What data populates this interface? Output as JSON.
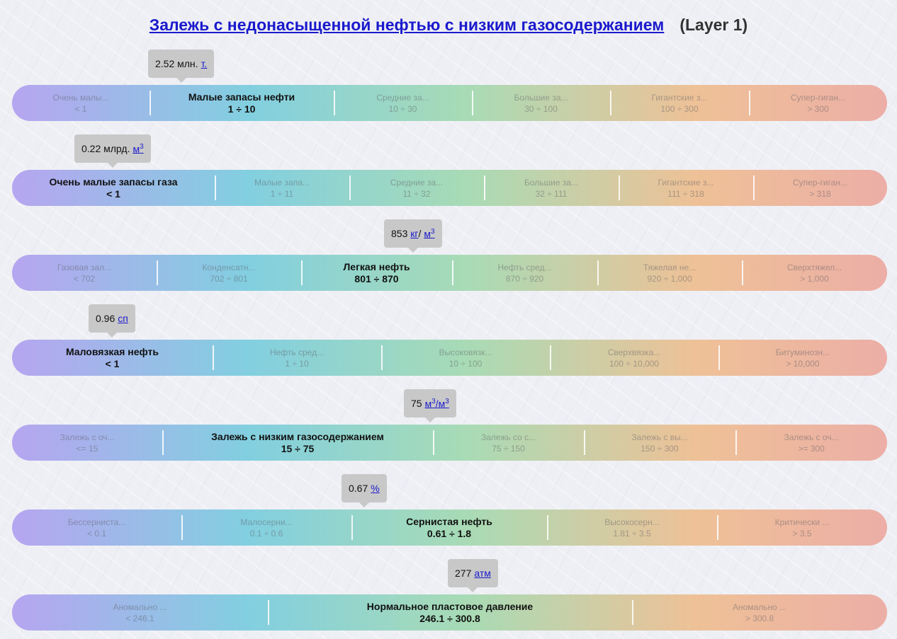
{
  "header": {
    "title": "Залежь с недонасыщенной нефтью с низким газосодержанием",
    "layer": "(Layer 1)"
  },
  "scales": [
    {
      "value": "2.52",
      "unit_prefix": "млн.",
      "unit_link": "т.",
      "segments": [
        {
          "name": "Очень малы...",
          "range": "< 1"
        },
        {
          "name": "Малые запасы нефти",
          "range": "1 ÷ 10"
        },
        {
          "name": "Средние за...",
          "range": "10 ÷ 30"
        },
        {
          "name": "Большие за...",
          "range": "30 ÷ 100"
        },
        {
          "name": "Гигантские з...",
          "range": "100 ÷ 300"
        },
        {
          "name": "Супер-гиган...",
          "range": "> 300"
        }
      ]
    },
    {
      "value": "0.22",
      "unit_prefix": "млрд.",
      "unit_link": "м",
      "segments": [
        {
          "name": "Очень малые запасы газа",
          "range": "< 1"
        },
        {
          "name": "Малые запа...",
          "range": "1 ÷ 11"
        },
        {
          "name": "Средние за...",
          "range": "11 ÷ 32"
        },
        {
          "name": "Большие за...",
          "range": "32 ÷ 111"
        },
        {
          "name": "Гигантские з...",
          "range": "111 ÷ 318"
        },
        {
          "name": "Супер-гиган...",
          "range": "> 318"
        }
      ]
    },
    {
      "value": "853",
      "unit_link": "кг",
      "unit_sep": "/",
      "unit_link2": "м",
      "segments": [
        {
          "name": "Газовая зал...",
          "range": "< 702"
        },
        {
          "name": "Конденсатн...",
          "range": "702 ÷ 801"
        },
        {
          "name": "Легкая нефть",
          "range": "801 ÷ 870"
        },
        {
          "name": "Нефть сред...",
          "range": "870 ÷ 920"
        },
        {
          "name": "Тяжелая не...",
          "range": "920 ÷ 1,000"
        },
        {
          "name": "Сверхтяжел...",
          "range": "> 1,000"
        }
      ]
    },
    {
      "value": "0.96",
      "unit_link": "сп",
      "segments": [
        {
          "name": "Маловязкая нефть",
          "range": "< 1"
        },
        {
          "name": "Нефть сред...",
          "range": "1 ÷ 10"
        },
        {
          "name": "Высоковязк...",
          "range": "10 ÷ 100"
        },
        {
          "name": "Сверхвязка...",
          "range": "100 ÷ 10,000"
        },
        {
          "name": "Битуминозн...",
          "range": "> 10,000"
        }
      ]
    },
    {
      "value": "75",
      "unit_link": "м",
      "unit_sep": "/",
      "unit_link2": "м",
      "segments": [
        {
          "name": "Залежь с оч...",
          "range": "<= 15"
        },
        {
          "name": "Залежь с низким газосодержанием",
          "range": "15 ÷ 75"
        },
        {
          "name": "Залежь со с...",
          "range": "75 ÷ 150"
        },
        {
          "name": "Залежь с вы...",
          "range": "150 ÷ 300"
        },
        {
          "name": "Залежь с оч...",
          "range": ">= 300"
        }
      ]
    },
    {
      "value": "0.67",
      "unit_link": "%",
      "segments": [
        {
          "name": "Бессерниста...",
          "range": "< 0.1"
        },
        {
          "name": "Малосерни...",
          "range": "0.1 ÷ 0.6"
        },
        {
          "name": "Сернистая нефть",
          "range": "0.61 ÷ 1.8"
        },
        {
          "name": "Высокосерн...",
          "range": "1.81 ÷ 3.5"
        },
        {
          "name": "Критически ...",
          "range": "> 3.5"
        }
      ]
    },
    {
      "value": "277",
      "unit_link": "атм",
      "segments": [
        {
          "name": "Аномально ...",
          "range": "< 246.1"
        },
        {
          "name": "Нормальное пластовое давление",
          "range": "246.1 ÷ 300.8"
        },
        {
          "name": "Аномально ...",
          "range": "> 300.8"
        }
      ]
    }
  ],
  "superscript": "3"
}
